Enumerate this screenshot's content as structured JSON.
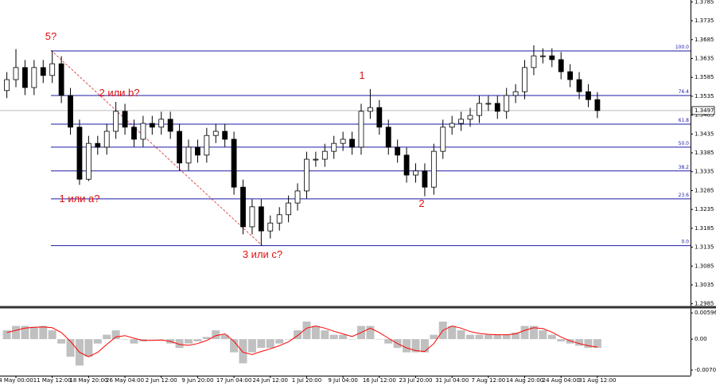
{
  "chart_data": {
    "type": "candlestick",
    "categories": [
      null,
      "4 May 00:00",
      null,
      null,
      null,
      "11 May 12:00",
      null,
      null,
      null,
      "18 May 20:00",
      null,
      null,
      null,
      "26 May 04:00",
      null,
      null,
      null,
      "2 Jun 12:00",
      null,
      null,
      null,
      "9 Jun 20:00",
      null,
      null,
      null,
      "17 Jun 04:00",
      null,
      null,
      null,
      "24 Jun 12:00",
      null,
      null,
      null,
      "1 Jul 20:00",
      null,
      null,
      null,
      "9 Jul 04:00",
      null,
      null,
      null,
      "16 Jul 12:00",
      null,
      null,
      null,
      "23 Jul 20:00",
      null,
      null,
      null,
      "31 Jul 04:00",
      null,
      null,
      null,
      "7 Aug 12:00",
      null,
      null,
      null,
      "14 Aug 20:00",
      null,
      null,
      null,
      "24 Aug 04:00",
      null,
      null,
      null,
      "31 Aug 12:00"
    ],
    "open": [
      1.355,
      1.3579,
      1.3611,
      1.3558,
      1.3611,
      1.359,
      1.3621,
      1.3537,
      1.3453,
      1.3315,
      1.341,
      1.34,
      1.3442,
      1.3495,
      1.3453,
      1.3421,
      1.3463,
      1.3453,
      1.3474,
      1.3442,
      1.3358,
      1.34,
      1.3379,
      1.3431,
      1.3442,
      1.3421,
      1.3294,
      1.3189,
      1.3242,
      1.3178,
      1.3199,
      1.3221,
      1.3252,
      1.3284,
      1.3368,
      1.3368,
      1.3389,
      1.341,
      1.3421,
      1.34,
      1.3495,
      1.3505,
      1.3453,
      1.34,
      1.3379,
      1.3326,
      1.3337,
      1.3294,
      1.3389,
      1.3453,
      1.3463,
      1.3474,
      1.3484,
      1.3516,
      1.3516,
      1.3495,
      1.3537,
      1.3547,
      1.3611,
      1.3642,
      1.3642,
      1.3632,
      1.36,
      1.3579,
      1.3547,
      1.3526
    ],
    "high": [
      1.3599,
      1.366,
      1.3631,
      1.3631,
      1.3631,
      1.3655,
      1.3641,
      1.3557,
      1.3473,
      1.343,
      1.343,
      1.3462,
      1.352,
      1.3515,
      1.3473,
      1.3483,
      1.3483,
      1.3494,
      1.3494,
      1.3462,
      1.342,
      1.342,
      1.3451,
      1.3462,
      1.3462,
      1.3441,
      1.3314,
      1.3262,
      1.3262,
      1.3219,
      1.3241,
      1.3272,
      1.3304,
      1.3388,
      1.3388,
      1.3409,
      1.343,
      1.3441,
      1.3441,
      1.3515,
      1.3554,
      1.3525,
      1.3473,
      1.342,
      1.3399,
      1.3357,
      1.3357,
      1.3409,
      1.3473,
      1.3483,
      1.3494,
      1.3504,
      1.3536,
      1.3536,
      1.3536,
      1.3557,
      1.3567,
      1.3631,
      1.367,
      1.3662,
      1.3662,
      1.3652,
      1.362,
      1.3599,
      1.3567,
      1.3546
    ],
    "low": [
      1.353,
      1.3559,
      1.3538,
      1.3538,
      1.357,
      1.357,
      1.3517,
      1.3433,
      1.33,
      1.331,
      1.338,
      1.338,
      1.3422,
      1.3433,
      1.3401,
      1.3401,
      1.3433,
      1.3433,
      1.3422,
      1.3338,
      1.3338,
      1.3359,
      1.3359,
      1.3411,
      1.3401,
      1.3274,
      1.3169,
      1.3169,
      1.3139,
      1.3158,
      1.3179,
      1.3201,
      1.3232,
      1.3264,
      1.3348,
      1.3348,
      1.3369,
      1.339,
      1.338,
      1.338,
      1.3475,
      1.3433,
      1.338,
      1.3359,
      1.3306,
      1.3306,
      1.327,
      1.3274,
      1.3369,
      1.3433,
      1.3443,
      1.3454,
      1.3464,
      1.3496,
      1.3475,
      1.3475,
      1.3517,
      1.3527,
      1.3591,
      1.3622,
      1.3612,
      1.358,
      1.3559,
      1.3527,
      1.3506,
      1.3477
    ],
    "close": [
      1.3579,
      1.3611,
      1.3558,
      1.3611,
      1.359,
      1.3621,
      1.3537,
      1.3453,
      1.3315,
      1.341,
      1.34,
      1.3442,
      1.3495,
      1.3453,
      1.3421,
      1.3463,
      1.3453,
      1.3474,
      1.3442,
      1.3358,
      1.34,
      1.3379,
      1.3431,
      1.3442,
      1.3421,
      1.3294,
      1.3189,
      1.3242,
      1.3178,
      1.3199,
      1.3221,
      1.3252,
      1.3284,
      1.3368,
      1.3368,
      1.3389,
      1.341,
      1.3421,
      1.34,
      1.3495,
      1.3505,
      1.3453,
      1.34,
      1.3379,
      1.3326,
      1.3337,
      1.3294,
      1.3389,
      1.3453,
      1.3463,
      1.3474,
      1.3484,
      1.3516,
      1.3516,
      1.3495,
      1.3537,
      1.3547,
      1.3611,
      1.3642,
      1.3642,
      1.3632,
      1.36,
      1.3579,
      1.3547,
      1.3526,
      1.3497
    ],
    "up_color": "#ffffff",
    "down_color": "#000000",
    "ylim": [
      1.2978,
      1.379
    ],
    "yticks": [
      1.2985,
      1.3035,
      1.3085,
      1.3135,
      1.3185,
      1.3235,
      1.3285,
      1.3335,
      1.3385,
      1.3435,
      1.3485,
      1.3535,
      1.3585,
      1.3635,
      1.3685,
      1.3735,
      1.3785
    ],
    "current_price": 1.3497,
    "fibonacci": {
      "color": "#1a1aa6",
      "levels": [
        {
          "label": "100.0",
          "price": 1.3655
        },
        {
          "label": "76.4",
          "price": 1.3537
        },
        {
          "label": "61.8",
          "price": 1.3461
        },
        {
          "label": "50.0",
          "price": 1.34
        },
        {
          "label": "38.2",
          "price": 1.3337
        },
        {
          "label": "23.6",
          "price": 1.3263
        },
        {
          "label": "0.0",
          "price": 1.3139
        }
      ]
    },
    "wave_labels": [
      "5?",
      "2 или b?",
      "1 или a?",
      "3 или c?",
      "1",
      "2"
    ],
    "macd": {
      "ylim": [
        -0.0083,
        0.0069
      ],
      "yticks": [
        0.00596,
        {
          "value": 0,
          "label": "0.00"
        },
        -0.00704
      ],
      "histogram_color": "#c0c0c0",
      "signal_color": "#ff0000",
      "histogram": [
        0.002,
        0.003,
        0.003,
        0.0028,
        0.003,
        0.002,
        -0.001,
        -0.004,
        -0.006,
        -0.004,
        -0.001,
        0.001,
        0.002,
        0,
        -0.001,
        -0.0005,
        0,
        0,
        -0.001,
        -0.002,
        -0.001,
        -0.0005,
        0.0005,
        0.002,
        0.001,
        -0.003,
        -0.0055,
        -0.003,
        -0.002,
        -0.002,
        -0.001,
        0,
        0.002,
        0.004,
        0.003,
        0.002,
        0.001,
        0.001,
        0,
        0.003,
        0.003,
        0,
        -0.001,
        -0.002,
        -0.003,
        -0.003,
        -0.003,
        0.001,
        0.004,
        0.003,
        0.002,
        0.001,
        0.001,
        0.001,
        0.001,
        0.001,
        0.0015,
        0.003,
        0.003,
        0.002,
        0.001,
        -0.0005,
        -0.001,
        -0.0015,
        -0.002,
        -0.002
      ],
      "signal": [
        0.0015,
        0.002,
        0.0025,
        0.0027,
        0.0028,
        0.0026,
        0.0015,
        -0.0005,
        -0.003,
        -0.004,
        -0.003,
        -0.0012,
        0.0005,
        0.0008,
        0.0002,
        -0.0003,
        -0.0003,
        -0.0002,
        -0.0005,
        -0.0012,
        -0.0014,
        -0.001,
        -0.0003,
        0.0008,
        0.0012,
        -0.0005,
        -0.003,
        -0.0035,
        -0.0028,
        -0.0022,
        -0.0015,
        -0.0006,
        0.0008,
        0.0025,
        0.003,
        0.0025,
        0.0018,
        0.0012,
        0.0006,
        0.0015,
        0.0025,
        0.0015,
        0.0002,
        -0.001,
        -0.002,
        -0.0026,
        -0.0028,
        -0.001,
        0.002,
        0.003,
        0.0025,
        0.0017,
        0.0013,
        0.0011,
        0.001,
        0.001,
        0.0012,
        0.002,
        0.0026,
        0.0024,
        0.0016,
        0.0005,
        -0.0004,
        -0.001,
        -0.0015,
        -0.0018
      ]
    }
  }
}
